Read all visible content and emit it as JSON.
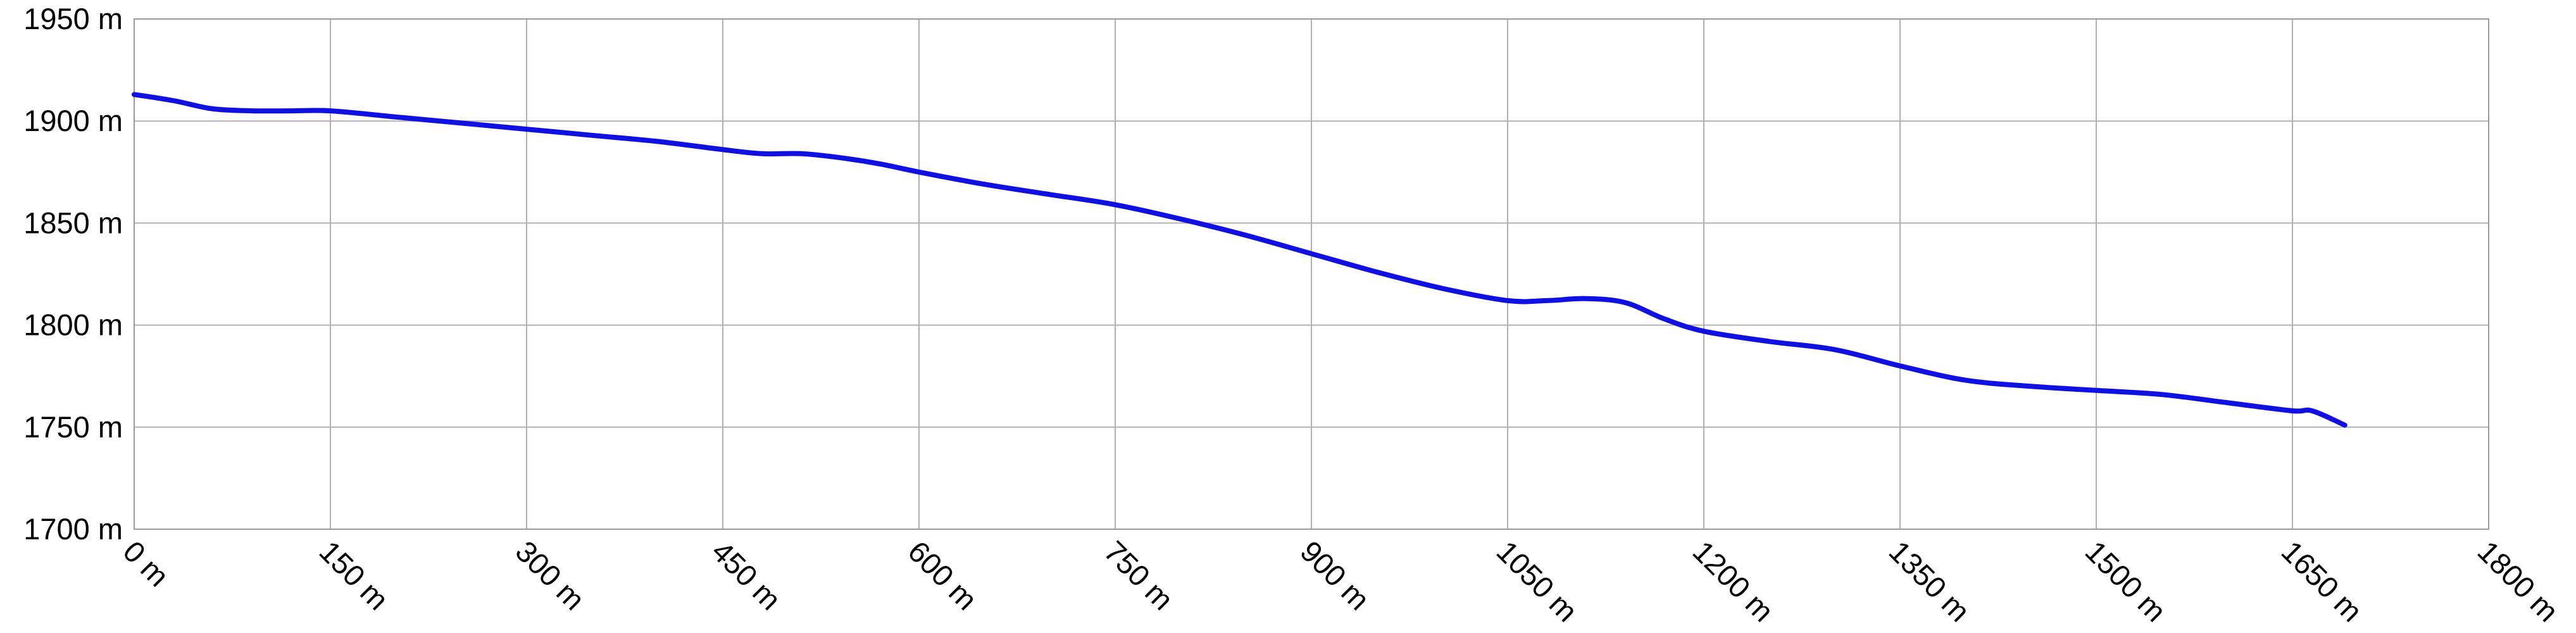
{
  "chart_data": {
    "type": "line",
    "title": "",
    "xlabel": "",
    "ylabel": "",
    "x_unit": "m",
    "y_unit": "m",
    "xlim": [
      0,
      1800
    ],
    "ylim": [
      1700,
      1950
    ],
    "x_ticks": [
      0,
      150,
      300,
      450,
      600,
      750,
      900,
      1050,
      1200,
      1350,
      1500,
      1650,
      1800
    ],
    "y_ticks": [
      1700,
      1750,
      1800,
      1850,
      1900,
      1950
    ],
    "x_tick_labels": [
      "0 m",
      "150 m",
      "300 m",
      "450 m",
      "600 m",
      "750 m",
      "900 m",
      "1050 m",
      "1200 m",
      "1350 m",
      "1500 m",
      "1650 m",
      "1800 m"
    ],
    "y_tick_labels": [
      "1700 m",
      "1750 m",
      "1800 m",
      "1850 m",
      "1900 m",
      "1950 m"
    ],
    "grid": true,
    "legend": "none",
    "color": "#1010e0",
    "series": [
      {
        "x": [
          0,
          30,
          60,
          90,
          120,
          150,
          200,
          250,
          300,
          350,
          400,
          450,
          480,
          510,
          540,
          570,
          600,
          650,
          700,
          750,
          800,
          850,
          900,
          950,
          1000,
          1050,
          1080,
          1110,
          1140,
          1170,
          1200,
          1250,
          1300,
          1350,
          1400,
          1450,
          1500,
          1550,
          1600,
          1650,
          1665,
          1690
        ],
        "y": [
          1913,
          1910,
          1906,
          1905,
          1905,
          1905,
          1902,
          1899,
          1896,
          1893,
          1890,
          1886,
          1884,
          1884,
          1882,
          1879,
          1875,
          1869,
          1864,
          1859,
          1852,
          1844,
          1835,
          1826,
          1818,
          1812,
          1812,
          1813,
          1811,
          1803,
          1797,
          1792,
          1788,
          1780,
          1773,
          1770,
          1768,
          1766,
          1762,
          1758,
          1758,
          1751
        ]
      }
    ]
  }
}
